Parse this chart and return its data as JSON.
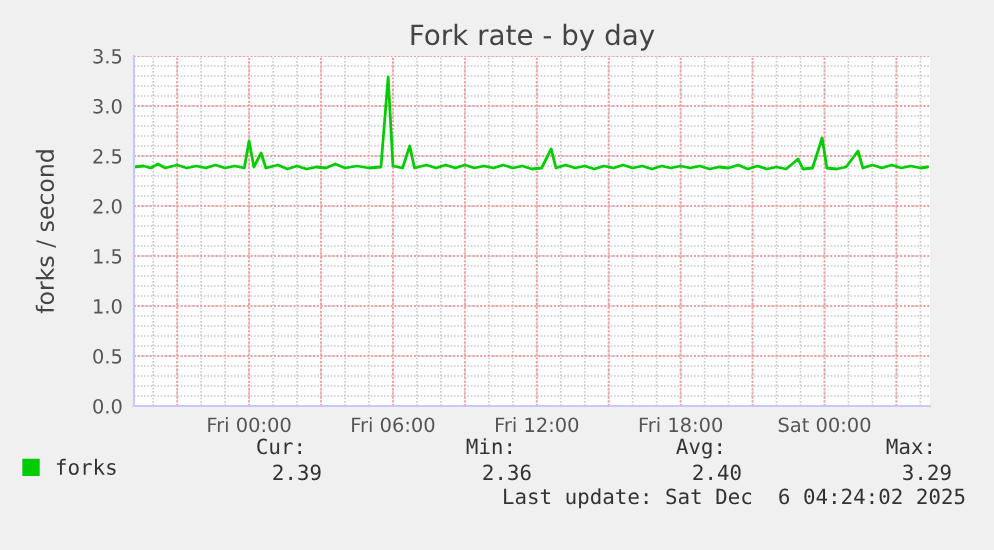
{
  "chart_data": {
    "type": "line",
    "title": "Fork rate - by day",
    "ylabel": "forks / second",
    "x": [
      "2025-12-04T19:12",
      "2025-12-04T19:36",
      "2025-12-04T19:54",
      "2025-12-04T20:12",
      "2025-12-04T20:30",
      "2025-12-04T21:00",
      "2025-12-04T21:24",
      "2025-12-04T21:48",
      "2025-12-04T22:12",
      "2025-12-04T22:36",
      "2025-12-04T23:00",
      "2025-12-04T23:24",
      "2025-12-04T23:48",
      "2025-12-05T00:00",
      "2025-12-05T00:12",
      "2025-12-05T00:30",
      "2025-12-05T00:42",
      "2025-12-05T01:12",
      "2025-12-05T01:36",
      "2025-12-05T02:00",
      "2025-12-05T02:24",
      "2025-12-05T02:48",
      "2025-12-05T03:12",
      "2025-12-05T03:36",
      "2025-12-05T04:00",
      "2025-12-05T04:30",
      "2025-12-05T05:00",
      "2025-12-05T05:30",
      "2025-12-05T05:48",
      "2025-12-05T06:00",
      "2025-12-05T06:24",
      "2025-12-05T06:42",
      "2025-12-05T06:54",
      "2025-12-05T07:24",
      "2025-12-05T07:48",
      "2025-12-05T08:12",
      "2025-12-05T08:36",
      "2025-12-05T09:00",
      "2025-12-05T09:24",
      "2025-12-05T09:48",
      "2025-12-05T10:12",
      "2025-12-05T10:36",
      "2025-12-05T11:00",
      "2025-12-05T11:24",
      "2025-12-05T11:48",
      "2025-12-05T12:12",
      "2025-12-05T12:36",
      "2025-12-05T12:48",
      "2025-12-05T13:12",
      "2025-12-05T13:36",
      "2025-12-05T14:00",
      "2025-12-05T14:24",
      "2025-12-05T14:48",
      "2025-12-05T15:12",
      "2025-12-05T15:36",
      "2025-12-05T16:00",
      "2025-12-05T16:24",
      "2025-12-05T16:48",
      "2025-12-05T17:12",
      "2025-12-05T17:36",
      "2025-12-05T18:00",
      "2025-12-05T18:24",
      "2025-12-05T18:48",
      "2025-12-05T19:12",
      "2025-12-05T19:36",
      "2025-12-05T20:00",
      "2025-12-05T20:24",
      "2025-12-05T20:48",
      "2025-12-05T21:12",
      "2025-12-05T21:36",
      "2025-12-05T22:00",
      "2025-12-05T22:24",
      "2025-12-05T22:54",
      "2025-12-05T23:06",
      "2025-12-05T23:30",
      "2025-12-05T23:54",
      "2025-12-06T00:06",
      "2025-12-06T00:30",
      "2025-12-06T00:54",
      "2025-12-06T01:24",
      "2025-12-06T01:36",
      "2025-12-06T02:00",
      "2025-12-06T02:24",
      "2025-12-06T02:48",
      "2025-12-06T03:12",
      "2025-12-06T03:36",
      "2025-12-06T04:00",
      "2025-12-06T04:18"
    ],
    "series": [
      {
        "name": "forks",
        "color": "#00cc00",
        "values": [
          2.39,
          2.4,
          2.38,
          2.42,
          2.38,
          2.41,
          2.38,
          2.4,
          2.38,
          2.41,
          2.38,
          2.4,
          2.38,
          2.65,
          2.39,
          2.53,
          2.38,
          2.41,
          2.37,
          2.4,
          2.37,
          2.39,
          2.38,
          2.42,
          2.38,
          2.4,
          2.38,
          2.39,
          3.29,
          2.4,
          2.38,
          2.6,
          2.38,
          2.41,
          2.38,
          2.41,
          2.38,
          2.41,
          2.38,
          2.4,
          2.38,
          2.41,
          2.38,
          2.4,
          2.37,
          2.38,
          2.57,
          2.38,
          2.41,
          2.38,
          2.4,
          2.37,
          2.4,
          2.38,
          2.41,
          2.38,
          2.4,
          2.37,
          2.4,
          2.38,
          2.4,
          2.38,
          2.4,
          2.37,
          2.39,
          2.38,
          2.41,
          2.37,
          2.4,
          2.37,
          2.39,
          2.37,
          2.47,
          2.37,
          2.38,
          2.68,
          2.38,
          2.37,
          2.39,
          2.55,
          2.38,
          2.41,
          2.38,
          2.41,
          2.38,
          2.4,
          2.38,
          2.39
        ]
      }
    ],
    "xlim": [
      "2025-12-04T19:12",
      "2025-12-06T04:24"
    ],
    "xticks": [
      {
        "value": "2025-12-04T21:00",
        "label": null
      },
      {
        "value": "2025-12-05T00:00",
        "label": "Fri 00:00"
      },
      {
        "value": "2025-12-05T03:00",
        "label": null
      },
      {
        "value": "2025-12-05T06:00",
        "label": "Fri 06:00"
      },
      {
        "value": "2025-12-05T09:00",
        "label": null
      },
      {
        "value": "2025-12-05T12:00",
        "label": "Fri 12:00"
      },
      {
        "value": "2025-12-05T15:00",
        "label": null
      },
      {
        "value": "2025-12-05T18:00",
        "label": "Fri 18:00"
      },
      {
        "value": "2025-12-05T21:00",
        "label": null
      },
      {
        "value": "2025-12-06T00:00",
        "label": "Sat 00:00"
      },
      {
        "value": "2025-12-06T03:00",
        "label": null
      }
    ],
    "ylim": [
      0,
      3.5
    ],
    "yticks": [
      {
        "value": 0,
        "label": "0.0"
      },
      {
        "value": 0.5,
        "label": "0.5"
      },
      {
        "value": 1,
        "label": "1.0"
      },
      {
        "value": 1.5,
        "label": "1.5"
      },
      {
        "value": 2,
        "label": "2.0"
      },
      {
        "value": 2.5,
        "label": "2.5"
      },
      {
        "value": 3,
        "label": "3.0"
      },
      {
        "value": 3.5,
        "label": "3.5"
      }
    ],
    "grid": true,
    "legend": "bottom left",
    "marker": "none",
    "line_style": "solid",
    "annotations": [
      "Cur:",
      "Min:",
      "Avg:",
      "Max:",
      "2.39",
      "2.36",
      "2.40",
      "3.29",
      "Last update: Sat Dec  6 04:24:02 2025"
    ]
  }
}
